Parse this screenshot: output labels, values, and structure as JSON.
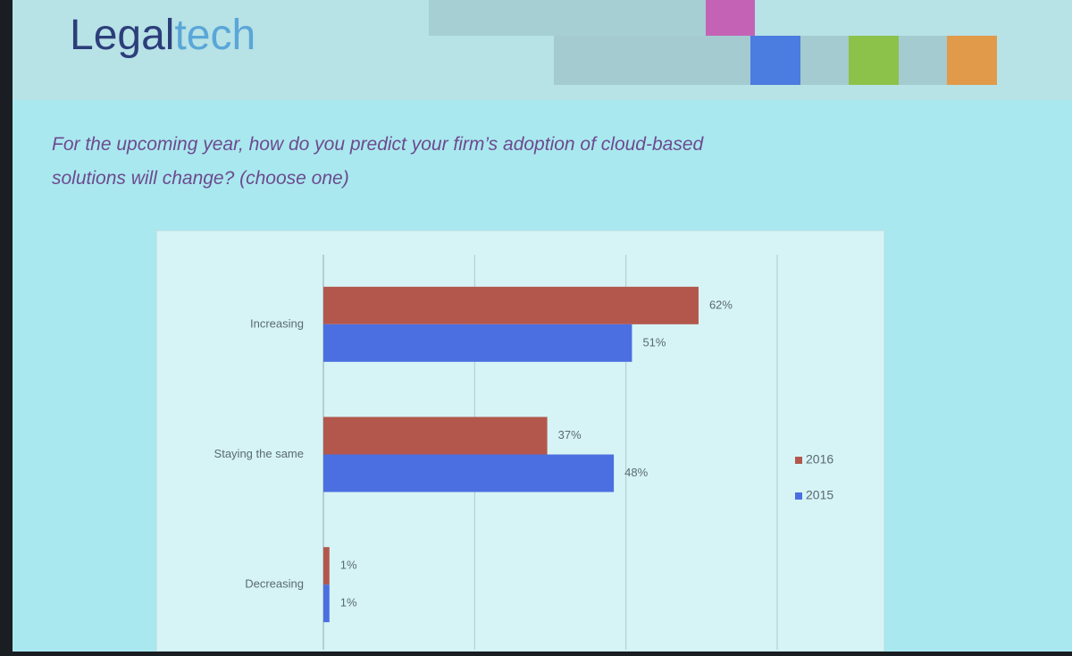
{
  "logo": [
    "Legal",
    "tech"
  ],
  "chart_data": {
    "type": "bar",
    "orientation": "horizontal",
    "title": "For the upcoming year, how do you predict your firm’s adoption of cloud-based solutions will change? (choose one)",
    "categories": [
      "Increasing",
      "Staying the same",
      "Decreasing"
    ],
    "series": [
      {
        "name": "2016",
        "color": "#b3574c",
        "values": [
          62,
          37,
          1
        ],
        "value_labels": [
          "62%",
          "37%",
          "1%"
        ]
      },
      {
        "name": "2015",
        "color": "#4b6fe0",
        "values": [
          51,
          48,
          1
        ],
        "value_labels": [
          "51%",
          "48%",
          "1%"
        ]
      }
    ],
    "xlim": [
      0,
      75
    ],
    "xticks": [
      0,
      25,
      50,
      75
    ],
    "grid": true,
    "legend": "right"
  }
}
